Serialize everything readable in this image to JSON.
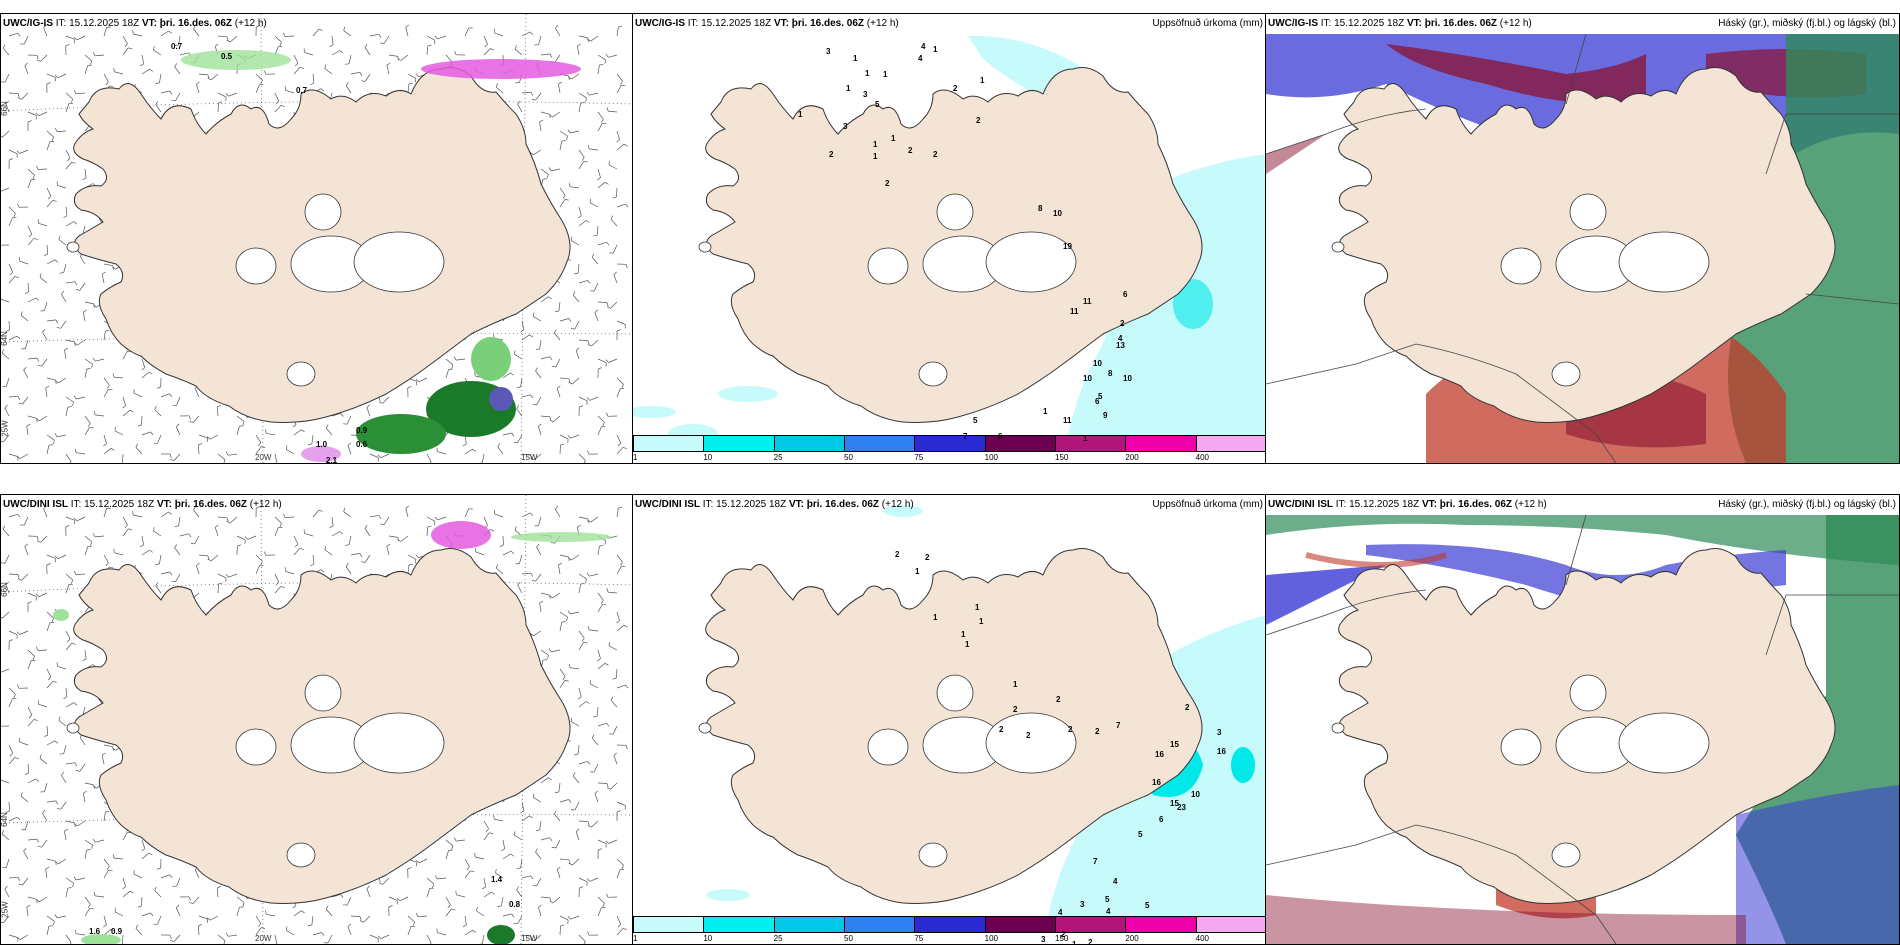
{
  "colors": {
    "land": "#f4e4d6",
    "wind_land": "#e3d2c1",
    "precip": [
      "#c7fbfb",
      "#00f0f0",
      "#00c8e6",
      "#2f80ef",
      "#2a2ad2",
      "#6c0050",
      "#b0157a",
      "#f000a8",
      "#f3a8f0"
    ],
    "cloud_high": "#2e8b57",
    "cloud_mid": "#3a3ad6",
    "cloud_low": "#c0392b"
  },
  "panels": {
    "p1": {
      "model": "UWC/IG-IS",
      "it": "IT: 15.12.2025 18Z",
      "vt_label": "VT:",
      "vt": "þri. 16.des. 06Z",
      "lead": "(+12 h)",
      "right": ""
    },
    "p2": {
      "model": "UWC/IG-IS",
      "it": "IT: 15.12.2025 18Z",
      "vt_label": "VT:",
      "vt": "þri. 16.des. 06Z",
      "lead": "(+12 h)",
      "right": "Uppsöfnuð úrkoma (mm)"
    },
    "p3": {
      "model": "UWC/IG-IS",
      "it": "IT: 15.12.2025 18Z",
      "vt_label": "VT:",
      "vt": "þri. 16.des. 06Z",
      "lead": "(+12 h)",
      "right": "Háský (gr.), miðský (fj.bl.) og lágský (bl.)"
    },
    "p4": {
      "model": "UWC/DINI ISL",
      "it": "IT: 15.12.2025 18Z",
      "vt_label": "VT:",
      "vt": "þri. 16.des. 06Z",
      "lead": "(+12 h)",
      "right": ""
    },
    "p5": {
      "model": "UWC/DINI ISL",
      "it": "IT: 15.12.2025 18Z",
      "vt_label": "VT:",
      "vt": "þri. 16.des. 06Z",
      "lead": "(+12 h)",
      "right": "Uppsöfnuð úrkoma (mm)"
    },
    "p6": {
      "model": "UWC/DINI ISL",
      "it": "IT: 15.12.2025 18Z",
      "vt_label": "VT:",
      "vt": "þri. 16.des. 06Z",
      "lead": "(+12 h)",
      "right": "Háský (gr.), miðský (fj.bl.) og lágský (bl.)"
    }
  },
  "colorbar_labels": [
    "1",
    "10",
    "25",
    "50",
    "75",
    "100",
    "150",
    "200",
    "400"
  ],
  "graticule": {
    "lon": [
      "20W",
      "15W"
    ],
    "lat_left": [
      "66N",
      "64N",
      "25W"
    ],
    "lat_right": [
      "66N",
      "64N"
    ]
  },
  "p1_labels": [
    "0.7",
    "0.5",
    "0.7",
    "0.9",
    "0.6",
    "2.1",
    "1.0"
  ],
  "p2_labels": [
    "3",
    "1",
    "1",
    "1",
    "1",
    "3",
    "5",
    "4",
    "4",
    "1",
    "1",
    "2",
    "1",
    "3",
    "2",
    "1",
    "2",
    "1",
    "1",
    "2",
    "2",
    "2",
    "8",
    "10",
    "19",
    "11",
    "11",
    "6",
    "4",
    "10",
    "8",
    "10",
    "13",
    "10",
    "5",
    "6",
    "9",
    "1",
    "11",
    "1",
    "5",
    "7",
    "6",
    "2"
  ],
  "p4_labels": [
    "1.4",
    "0.8",
    "1.6",
    "0.9"
  ],
  "p5_labels": [
    "2",
    "2",
    "1",
    "1",
    "1",
    "1",
    "1",
    "1",
    "1",
    "2",
    "2",
    "2",
    "2",
    "2",
    "2",
    "7",
    "2",
    "15",
    "16",
    "16",
    "16",
    "23",
    "15",
    "3",
    "10",
    "6",
    "5",
    "7",
    "4",
    "5",
    "3",
    "4",
    "4",
    "2",
    "1",
    "3",
    "2",
    "2",
    "5"
  ]
}
